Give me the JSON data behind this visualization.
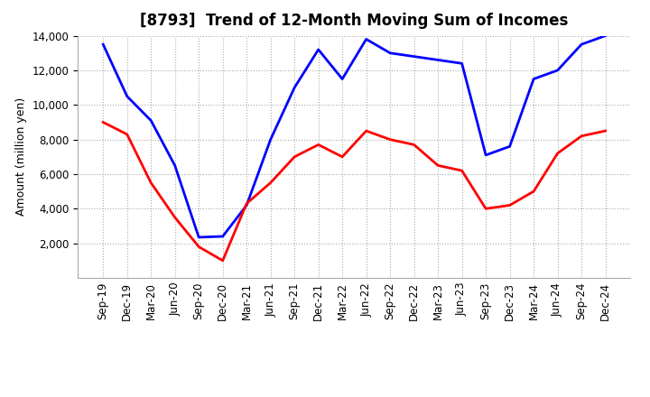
{
  "title": "[8793]  Trend of 12-Month Moving Sum of Incomes",
  "ylabel": "Amount (million yen)",
  "background_color": "#ffffff",
  "grid_color": "#aaaaaa",
  "x_labels": [
    "Sep-19",
    "Dec-19",
    "Mar-20",
    "Jun-20",
    "Sep-20",
    "Dec-20",
    "Mar-21",
    "Jun-21",
    "Sep-21",
    "Dec-21",
    "Mar-22",
    "Jun-22",
    "Sep-22",
    "Dec-22",
    "Mar-23",
    "Jun-23",
    "Sep-23",
    "Dec-23",
    "Mar-24",
    "Jun-24",
    "Sep-24",
    "Dec-24"
  ],
  "ordinary_income": [
    13500,
    10500,
    9100,
    6500,
    2350,
    2400,
    4200,
    8000,
    11000,
    13200,
    11500,
    13800,
    13000,
    12800,
    12600,
    12400,
    7100,
    7600,
    11500,
    12000,
    13500,
    14000
  ],
  "net_income": [
    9000,
    8300,
    5500,
    3500,
    1800,
    1000,
    4300,
    5500,
    7000,
    7700,
    7000,
    8500,
    8000,
    7700,
    6500,
    6200,
    4000,
    4200,
    5000,
    7200,
    8200,
    8500
  ],
  "ordinary_color": "#0000ff",
  "net_color": "#ff0000",
  "ylim": [
    0,
    14000
  ],
  "yticks": [
    2000,
    4000,
    6000,
    8000,
    10000,
    12000,
    14000
  ],
  "line_width": 2.0,
  "title_fontsize": 12,
  "tick_fontsize": 8.5,
  "label_fontsize": 9,
  "legend_fontsize": 9
}
